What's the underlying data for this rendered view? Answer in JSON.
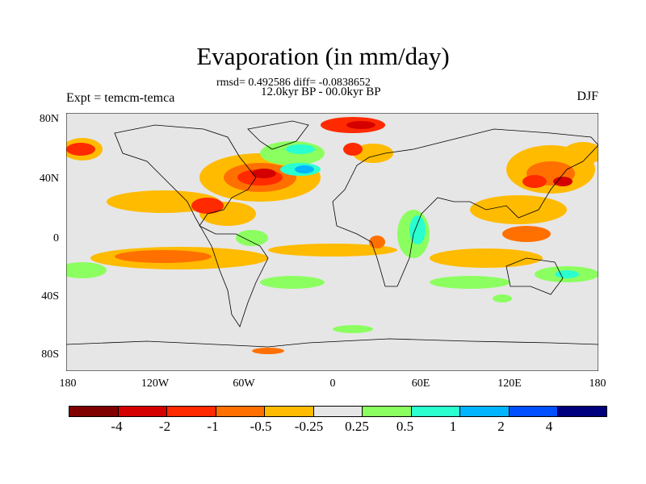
{
  "title": "Evaporation (in mm/day)",
  "stats": "rmsd= 0.492586 diff= -0.0838652",
  "period": "12.0kyr BP - 00.0kyr BP",
  "experiment": "Expt = temcm-temca",
  "season": "DJF",
  "lat_labels": [
    "80N",
    "40N",
    "0",
    "40S",
    "80S"
  ],
  "lon_labels": [
    "180",
    "120W",
    "60W",
    "0",
    "60E",
    "120E",
    "180"
  ],
  "colorbar": {
    "colors": [
      "#800000",
      "#d40000",
      "#ff2a00",
      "#ff7000",
      "#ffbb00",
      "#e6e6e6",
      "#8cff60",
      "#2affd0",
      "#00b4ff",
      "#0050ff",
      "#00007f"
    ],
    "labels": [
      "-4",
      "-2",
      "-1",
      "-0.5",
      "-0.25",
      "0.25",
      "0.5",
      "1",
      "2",
      "4"
    ]
  }
}
